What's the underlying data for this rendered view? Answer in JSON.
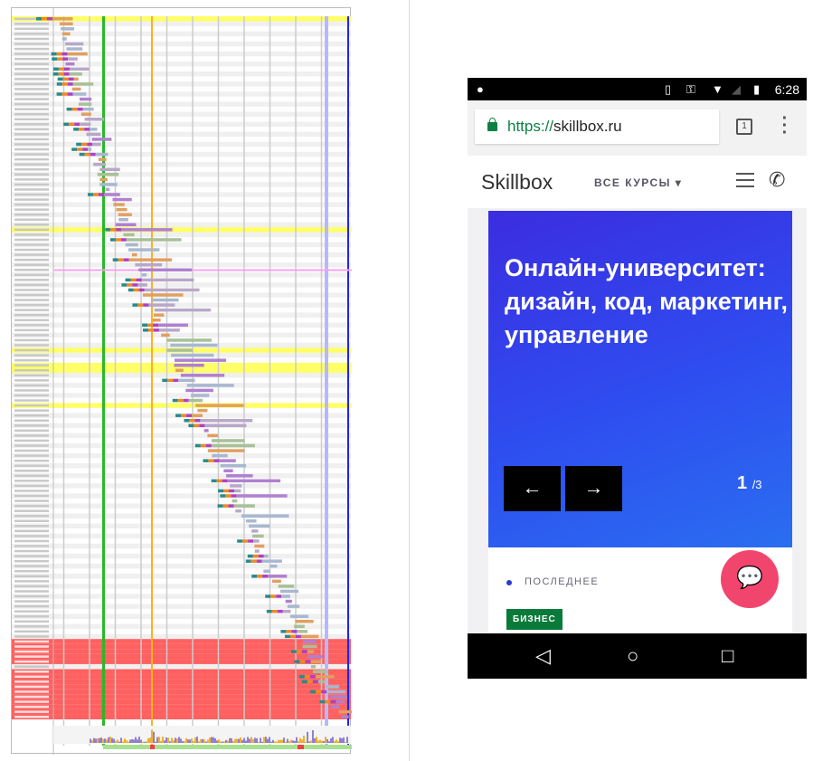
{
  "waterfall": {
    "colors": {
      "row_highlight": "#ffff66",
      "row_error": "#ff6060",
      "grid": "#cccccc",
      "start_render": "#28b828",
      "dom_content": "#ffb020",
      "onload": "#b8b8f8",
      "fully_loaded": "#2020ff",
      "bar_image": "#b8a8c8",
      "bar_script": "#e0a060",
      "bar_css": "#a8c098",
      "bar_html": "#a8b8d0",
      "bar_font": "#b080d0"
    }
  },
  "phone": {
    "status": {
      "time": "6:28"
    },
    "browser": {
      "scheme": "https://",
      "host": "skillbox.ru",
      "tab_count": "1",
      "menu_icon": "⋮"
    },
    "header": {
      "logo": "Skillbox",
      "courses_label": "ВСЕ КУРСЫ",
      "caret": "▾"
    },
    "hero": {
      "headline": "Онлайн-университет: дизайн, код, маркетинг, управление",
      "prev": "←",
      "next": "→",
      "current": "1",
      "total": "/3"
    },
    "card": {
      "section": "ПОСЛЕДНЕЕ",
      "tag": "БИЗНЕС"
    },
    "fab_icon": "chat-icon"
  }
}
